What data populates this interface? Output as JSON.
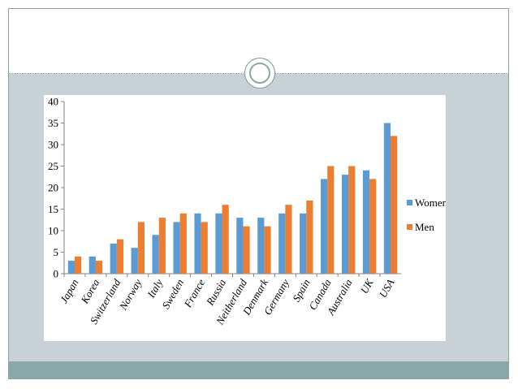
{
  "colors": {
    "women": "#5b9bd5",
    "men": "#ed7d31"
  },
  "chart_data": {
    "type": "bar",
    "title": "",
    "xlabel": "",
    "ylabel": "",
    "ylim": [
      0,
      40
    ],
    "yticks": [
      0,
      5,
      10,
      15,
      20,
      25,
      30,
      35,
      40
    ],
    "grid": false,
    "legend_position": "right",
    "categories": [
      "Japan",
      "Korea",
      "Switzerland",
      "Norway",
      "Italy",
      "Sweden",
      "France",
      "Russia",
      "Neitherland",
      "Denmark",
      "Germany",
      "Spain",
      "Canada",
      "Australia",
      "UK",
      "USA"
    ],
    "series": [
      {
        "name": "Women",
        "values": [
          3,
          4,
          7,
          6,
          9,
          12,
          14,
          14,
          13,
          13,
          14,
          14,
          22,
          23,
          24,
          35
        ]
      },
      {
        "name": "Men",
        "values": [
          4,
          3,
          8,
          12,
          13,
          14,
          12,
          16,
          11,
          11,
          16,
          17,
          25,
          25,
          22,
          32
        ]
      }
    ]
  }
}
